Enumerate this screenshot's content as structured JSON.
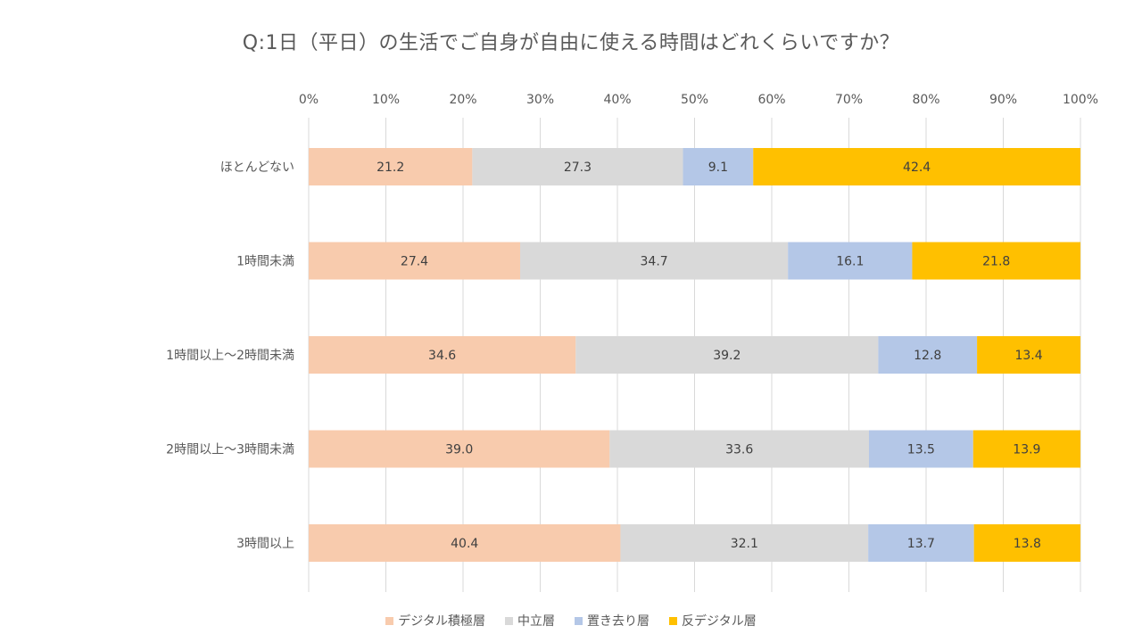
{
  "chart_data": {
    "type": "bar",
    "orientation": "horizontal",
    "stacked": true,
    "percent_stacked": true,
    "title": "Q:1日（平日）の生活でご自身が自由に使える時間はどれくらいですか？",
    "categories": [
      "ほとんどない",
      "1時間未満",
      "1時間以上～2時間未満",
      "2時間以上～3時間未満",
      "3時間以上"
    ],
    "xlim": [
      0,
      100
    ],
    "x_ticks": [
      "0%",
      "10%",
      "20%",
      "30%",
      "40%",
      "50%",
      "60%",
      "70%",
      "80%",
      "90%",
      "100%"
    ],
    "x_axis_position": "top",
    "grid": true,
    "legend_position": "bottom",
    "series": [
      {
        "name": "デジタル積極層",
        "color": "#F8CBAD",
        "values": [
          21.2,
          27.4,
          34.6,
          39.0,
          40.4
        ],
        "labels": [
          "21.2",
          "27.4",
          "34.6",
          "39.0",
          "40.4"
        ]
      },
      {
        "name": "中立層",
        "color": "#D9D9D9",
        "values": [
          27.3,
          34.7,
          39.2,
          33.6,
          32.1
        ],
        "labels": [
          "27.3",
          "34.7",
          "39.2",
          "33.6",
          "32.1"
        ]
      },
      {
        "name": "置き去り層",
        "color": "#B4C7E7",
        "values": [
          9.1,
          16.1,
          12.8,
          13.5,
          13.7
        ],
        "labels": [
          "9.1",
          "16.1",
          "12.8",
          "13.5",
          "13.7"
        ]
      },
      {
        "name": "反デジタル層",
        "color": "#FFC000",
        "values": [
          42.4,
          21.8,
          13.4,
          13.9,
          13.8
        ],
        "labels": [
          "42.4",
          "21.8",
          "13.4",
          "13.9",
          "13.8"
        ]
      }
    ]
  }
}
